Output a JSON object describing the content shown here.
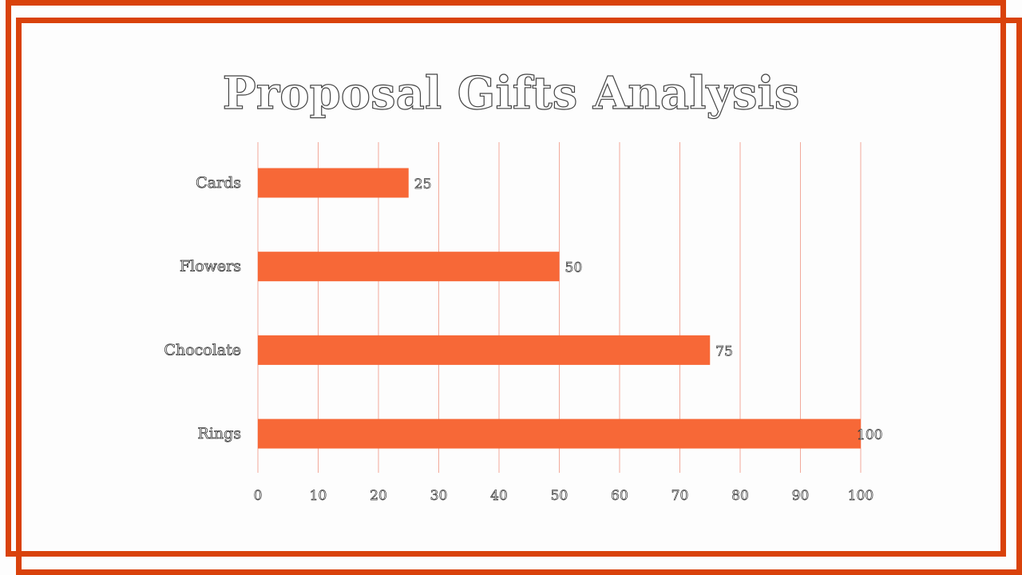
{
  "colors": {
    "frame": "#d9420b",
    "bar": "#f76837",
    "grid": "#f2a99a"
  },
  "chart_data": {
    "type": "bar",
    "orientation": "horizontal",
    "title": "Proposal Gifts Analysis",
    "categories": [
      "Cards",
      "Flowers",
      "Chocolate",
      "Rings"
    ],
    "values": [
      25,
      50,
      75,
      100
    ],
    "value_labels": [
      "25",
      "50",
      "75",
      "100"
    ],
    "xlim": [
      0,
      100
    ],
    "xticks": [
      "0",
      "10",
      "20",
      "30",
      "40",
      "50",
      "60",
      "70",
      "80",
      "90",
      "100"
    ],
    "grid": true,
    "legend": "none"
  }
}
